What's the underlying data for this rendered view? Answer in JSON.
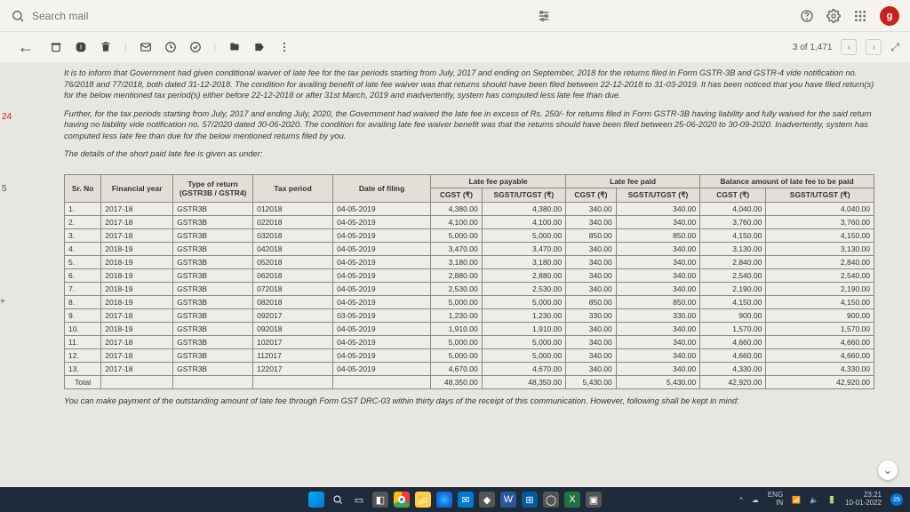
{
  "topbar": {
    "search_placeholder": "Search mail",
    "avatar_letter": "g"
  },
  "toolbar": {
    "counter": "3 of 1,471"
  },
  "left_markers": {
    "num": "24",
    "five": "5",
    "plus": "+"
  },
  "paragraphs": {
    "p1": "It is to inform that Government had given conditional waiver of late fee for the tax periods starting from July, 2017 and ending on September, 2018 for the returns filed in Form GSTR-3B and GSTR-4 vide notification no. 76/2018 and 77/2018, both dated 31-12-2018. The condition for availing benefit of late fee waiver was that returns should have been filed between 22-12-2018 to 31-03-2019. It has been noticed that you have filed return(s) for the below mentioned tax period(s) either before 22-12-2018 or after 31st March, 2019 and inadvertently, system has computed less late fee than due.",
    "p2": "Further, for the tax periods starting from July, 2017 and ending July, 2020, the Government had waived the late fee in excess of Rs. 250/- for returns filed in Form GSTR-3B having liability and fully waived for the said return having no liability vide notification no. 57/2020 dated 30-06-2020. The condition for availing late fee waiver benefit was that the returns should have been filed between 25-06-2020 to 30-09-2020. Inadvertently, system has computed less late fee than due for the below mentioned returns filed by you.",
    "p3": "The details of the short paid late fee is given as under:",
    "footer": "You can make payment of the outstanding amount of late fee through Form GST DRC-03 within thirty days of the receipt of this communication. However, following shall be kept in mind:"
  },
  "table": {
    "headers": {
      "srno": "Sr. No",
      "fy": "Financial year",
      "type": "Type of return (GSTR3B / GSTR4)",
      "period": "Tax period",
      "dof": "Date of filing",
      "payable": "Late fee payable",
      "paid": "Late fee paid",
      "balance": "Balance amount of late fee to be paid",
      "cgst": "CGST (₹)",
      "sgst": "SGST/UTGST (₹)"
    },
    "rows": [
      {
        "n": "1.",
        "fy": "2017-18",
        "type": "GSTR3B",
        "tp": "012018",
        "dof": "04-05-2019",
        "pc": "4,380.00",
        "ps": "4,380.00",
        "dc": "340.00",
        "ds": "340.00",
        "bc": "4,040.00",
        "bs": "4,040.00"
      },
      {
        "n": "2.",
        "fy": "2017-18",
        "type": "GSTR3B",
        "tp": "022018",
        "dof": "04-05-2019",
        "pc": "4,100.00",
        "ps": "4,100.00",
        "dc": "340.00",
        "ds": "340.00",
        "bc": "3,760.00",
        "bs": "3,760.00"
      },
      {
        "n": "3.",
        "fy": "2017-18",
        "type": "GSTR3B",
        "tp": "032018",
        "dof": "04-05-2019",
        "pc": "5,000.00",
        "ps": "5,000.00",
        "dc": "850.00",
        "ds": "850.00",
        "bc": "4,150.00",
        "bs": "4,150.00"
      },
      {
        "n": "4.",
        "fy": "2018-19",
        "type": "GSTR3B",
        "tp": "042018",
        "dof": "04-05-2019",
        "pc": "3,470.00",
        "ps": "3,470.00",
        "dc": "340.00",
        "ds": "340.00",
        "bc": "3,130.00",
        "bs": "3,130.00"
      },
      {
        "n": "5.",
        "fy": "2018-19",
        "type": "GSTR3B",
        "tp": "052018",
        "dof": "04-05-2019",
        "pc": "3,180.00",
        "ps": "3,180.00",
        "dc": "340.00",
        "ds": "340.00",
        "bc": "2,840.00",
        "bs": "2,840.00"
      },
      {
        "n": "6.",
        "fy": "2018-19",
        "type": "GSTR3B",
        "tp": "062018",
        "dof": "04-05-2019",
        "pc": "2,880.00",
        "ps": "2,880.00",
        "dc": "340.00",
        "ds": "340.00",
        "bc": "2,540.00",
        "bs": "2,540.00"
      },
      {
        "n": "7.",
        "fy": "2018-19",
        "type": "GSTR3B",
        "tp": "072018",
        "dof": "04-05-2019",
        "pc": "2,530.00",
        "ps": "2,530.00",
        "dc": "340.00",
        "ds": "340.00",
        "bc": "2,190.00",
        "bs": "2,190.00"
      },
      {
        "n": "8.",
        "fy": "2018-19",
        "type": "GSTR3B",
        "tp": "082018",
        "dof": "04-05-2019",
        "pc": "5,000.00",
        "ps": "5,000.00",
        "dc": "850.00",
        "ds": "850.00",
        "bc": "4,150.00",
        "bs": "4,150.00"
      },
      {
        "n": "9.",
        "fy": "2017-18",
        "type": "GSTR3B",
        "tp": "092017",
        "dof": "03-05-2019",
        "pc": "1,230.00",
        "ps": "1,230.00",
        "dc": "330.00",
        "ds": "330.00",
        "bc": "900.00",
        "bs": "900.00"
      },
      {
        "n": "10.",
        "fy": "2018-19",
        "type": "GSTR3B",
        "tp": "092018",
        "dof": "04-05-2019",
        "pc": "1,910.00",
        "ps": "1,910.00",
        "dc": "340.00",
        "ds": "340.00",
        "bc": "1,570.00",
        "bs": "1,570.00"
      },
      {
        "n": "11.",
        "fy": "2017-18",
        "type": "GSTR3B",
        "tp": "102017",
        "dof": "04-05-2019",
        "pc": "5,000.00",
        "ps": "5,000.00",
        "dc": "340.00",
        "ds": "340.00",
        "bc": "4,660.00",
        "bs": "4,660.00"
      },
      {
        "n": "12.",
        "fy": "2017-18",
        "type": "GSTR3B",
        "tp": "112017",
        "dof": "04-05-2019",
        "pc": "5,000.00",
        "ps": "5,000.00",
        "dc": "340.00",
        "ds": "340.00",
        "bc": "4,660.00",
        "bs": "4,660.00"
      },
      {
        "n": "13.",
        "fy": "2017-18",
        "type": "GSTR3B",
        "tp": "122017",
        "dof": "04-05-2019",
        "pc": "4,670.00",
        "ps": "4,670.00",
        "dc": "340.00",
        "ds": "340.00",
        "bc": "4,330.00",
        "bs": "4,330.00"
      }
    ],
    "total": {
      "label": "Total",
      "pc": "48,350.00",
      "ps": "48,350.00",
      "dc": "5,430.00",
      "ds": "5,430.00",
      "bc": "42,920.00",
      "bs": "42,920.00"
    }
  },
  "taskbar": {
    "lang1": "ENG",
    "lang2": "IN",
    "time": "23:21",
    "date": "10-01-2022",
    "notif": "25"
  }
}
